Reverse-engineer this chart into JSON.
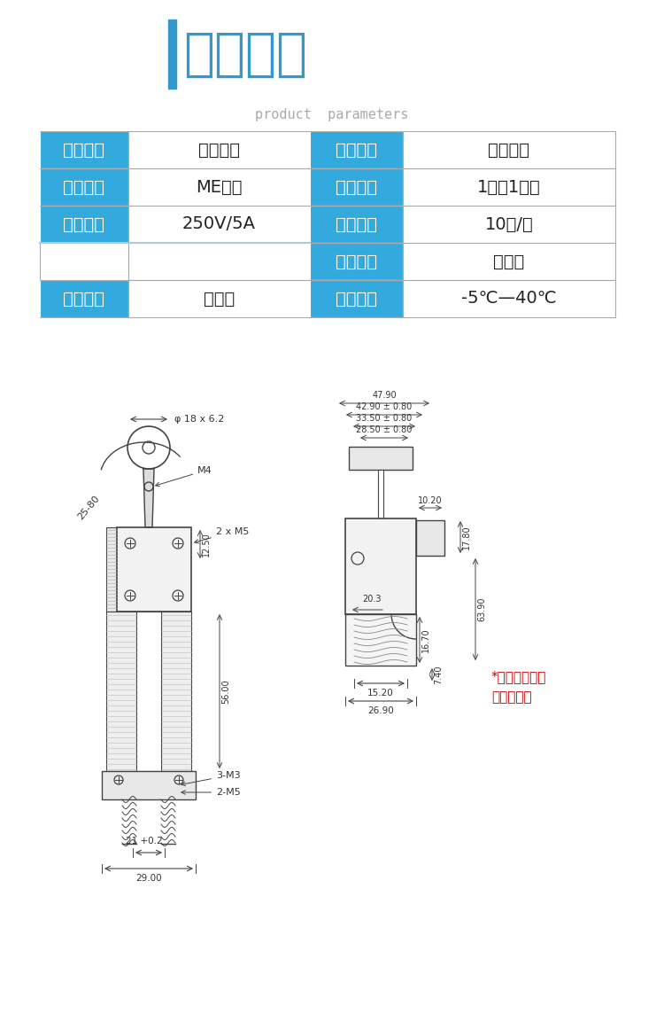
{
  "bg_color": "#ffffff",
  "title_zh": "产品参数",
  "title_en": "product  parameters",
  "title_bar_color": "#3399cc",
  "title_color": "#3399cc",
  "title_en_color": "#aaaaaa",
  "table_header_bg": "#33aadd",
  "table_header_color": "#ffffff",
  "table_border_color": "#aaaaaa",
  "table_rows": [
    [
      "产品名称",
      "行程开关",
      "外壳材质",
      "阻燃材质"
    ],
    [
      "产品型号",
      "ME系列",
      "触点形式",
      "1常开1常闭"
    ],
    [
      "电压电流",
      "250V/5A",
      "包装数量",
      "10个/盒"
    ],
    [
      "",
      "",
      "动作形式",
      "自复位"
    ],
    [
      "接线方式",
      "压板式",
      "环境温度",
      "-5℃—40℃"
    ]
  ],
  "note_color": "#cc0000",
  "note_text1": "*尺寸仅供参考",
  "note_text2": "以实物为主"
}
